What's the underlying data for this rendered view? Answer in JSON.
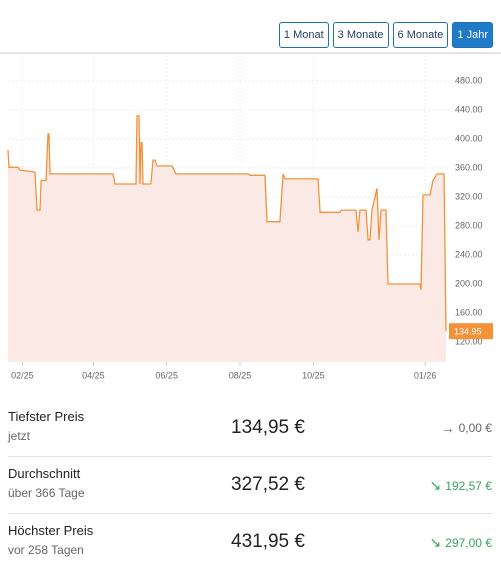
{
  "buttons": [
    "1 Monat",
    "3 Monate",
    "6 Monate",
    "1 Jahr"
  ],
  "chart_data": {
    "type": "line",
    "color": "#f4923a",
    "area_color": "#fbe9e6",
    "x": [
      0,
      0.8,
      8.3,
      10,
      20.8,
      22.5,
      24.1,
      26.6,
      27.5,
      31.6,
      33.3,
      34.1,
      34.9,
      87.3,
      89,
      106.5,
      107.3,
      109,
      109.8,
      110.6,
      111.5,
      112.3,
      118.9,
      120.6,
      122.3,
      123.9,
      134.8,
      136.4,
      139.7,
      199.6,
      201.3,
      213.8,
      215.4,
      226.2,
      228.8,
      230.4,
      257.9,
      259.6,
      276.2,
      277,
      289.5,
      291.1,
      292.8,
      297.8,
      299.5,
      301.1,
      302.8,
      306.9,
      308.6,
      310.3,
      314.4,
      316.1,
      342.7,
      343.5,
      345.2,
      351,
      353.5,
      356.9,
      362.7,
      364.3
    ],
    "values": [
      385,
      361,
      361,
      357,
      355,
      354,
      302,
      302,
      343,
      343,
      407,
      407,
      352,
      352,
      338,
      338,
      432,
      432,
      338,
      395,
      395,
      338,
      338,
      371,
      371,
      363,
      363,
      363,
      352,
      352,
      350,
      350,
      286,
      286,
      352,
      345,
      345,
      299,
      299,
      302,
      302,
      272,
      302,
      302,
      261,
      261,
      302,
      332,
      261,
      302,
      302,
      200,
      200,
      192,
      323,
      323,
      343,
      352,
      352,
      134.95
    ],
    "last_price": 134.95,
    "xlim": [
      0,
      366
    ],
    "xticks": [
      {
        "value": 12,
        "label": "02/25"
      },
      {
        "value": 71,
        "label": "04/25"
      },
      {
        "value": 132,
        "label": "06/25"
      },
      {
        "value": 193,
        "label": "08/25"
      },
      {
        "value": 254,
        "label": "10/25"
      },
      {
        "value": 347,
        "label": "01/26"
      }
    ],
    "ylim": [
      92.4,
      516
    ],
    "yticks": [
      {
        "value": 480,
        "label": "480.00"
      },
      {
        "value": 440,
        "label": "440.00"
      },
      {
        "value": 400,
        "label": "400.00"
      },
      {
        "value": 360,
        "label": "360.00"
      },
      {
        "value": 320,
        "label": "320.00"
      },
      {
        "value": 280,
        "label": "280.00"
      },
      {
        "value": 240,
        "label": "240.00"
      },
      {
        "value": 200,
        "label": "200.00"
      },
      {
        "value": 160,
        "label": "160.00"
      },
      {
        "value": 120,
        "label": "120.00"
      }
    ],
    "grid": true
  },
  "stats": [
    {
      "label": "Tiefster Preis",
      "sub": "jetzt",
      "value": "134,95 €",
      "change": "0,00 €"
    },
    {
      "label": "Durchschnitt",
      "sub": "über 366 Tage",
      "value": "327,52 €",
      "change": "192,57 €"
    },
    {
      "label": "Höchster Preis",
      "sub": "vor 258 Tagen",
      "value": "431,95 €",
      "change": "297,00 €"
    }
  ]
}
